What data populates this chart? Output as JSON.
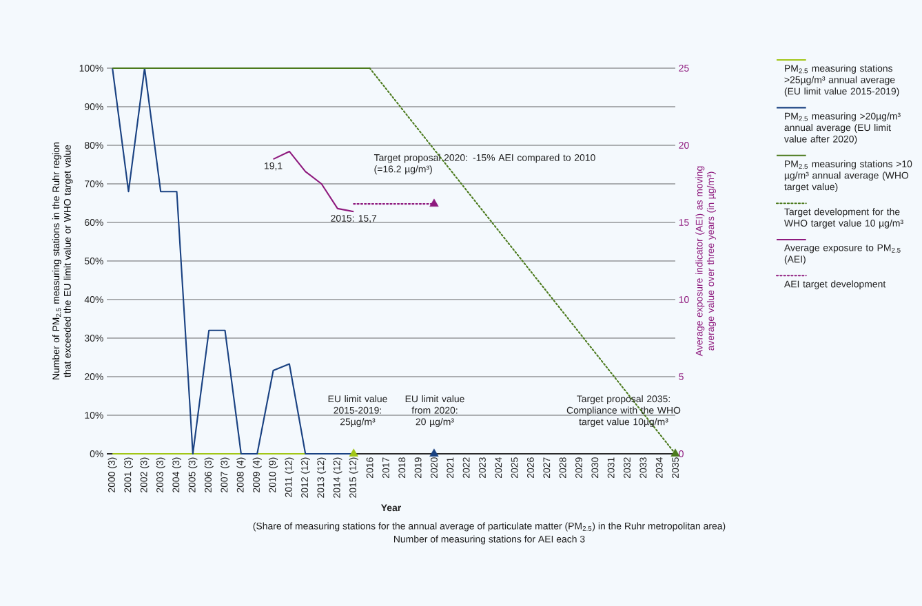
{
  "chart_data": {
    "type": "line",
    "categories": [
      "2000 (3)",
      "2001 (3)",
      "2002 (3)",
      "2003 (3)",
      "2004 (3)",
      "2005 (3)",
      "2006 (3)",
      "2007 (3)",
      "2008 (4)",
      "2009 (4)",
      "2010 (9)",
      "2011 (12)",
      "2012 (12)",
      "2013 (12)",
      "2014 (12)",
      "2015 (12)",
      "2016",
      "2017",
      "2018",
      "2019",
      "2020",
      "2021",
      "2022",
      "2023",
      "2024",
      "2025",
      "2026",
      "2027",
      "2028",
      "2029",
      "2030",
      "2031",
      "2032",
      "2033",
      "2034",
      "2035"
    ],
    "xlabel": "Year",
    "ylabel": "Number of PM$_{2.5}$ measuring stations in the Ruhr region that exceeded the EU limit value or WHO target value",
    "y2label": "Average exposure indicator (AEI) as moving average value over three years (in µg/m³)",
    "ylim": [
      0,
      100
    ],
    "yticks": [
      {
        "value": 0,
        "label": "0%"
      },
      {
        "value": 10,
        "label": "10%"
      },
      {
        "value": 20,
        "label": "20%"
      },
      {
        "value": 30,
        "label": "30%"
      },
      {
        "value": 40,
        "label": "40%"
      },
      {
        "value": 50,
        "label": "50%"
      },
      {
        "value": 60,
        "label": "60%"
      },
      {
        "value": 70,
        "label": "70%"
      },
      {
        "value": 80,
        "label": "80%"
      },
      {
        "value": 90,
        "label": "90%"
      },
      {
        "value": 100,
        "label": "100%"
      }
    ],
    "y2lim": [
      0,
      25
    ],
    "y2ticks": [
      0,
      5,
      10,
      15,
      20,
      25
    ],
    "grid": "y",
    "legend": "right",
    "series": [
      {
        "name": "PM$_{2.5}$ measuring stations >25µg/m³ annual average (EU limit value 2015-2019)",
        "color": "#a2c617",
        "values": [
          0,
          0,
          0,
          0,
          0,
          0,
          0,
          0,
          0,
          0,
          0,
          0,
          0,
          0,
          0,
          0,
          null,
          null,
          null,
          null,
          null,
          null,
          null,
          null,
          null,
          null,
          null,
          null,
          null,
          null,
          null,
          null,
          null,
          null,
          null,
          null
        ]
      },
      {
        "name": "PM$_{2.5}$ measuring >20µg/m³ annual average (EU limit value after 2020)",
        "color": "#1a4282",
        "values": [
          100,
          68,
          100,
          68,
          68,
          0,
          32,
          32,
          0,
          0,
          21.6,
          23.3,
          0,
          0,
          0,
          0,
          null,
          null,
          null,
          null,
          null,
          null,
          null,
          null,
          null,
          null,
          null,
          null,
          null,
          null,
          null,
          null,
          null,
          null,
          null,
          null
        ]
      },
      {
        "name": "PM$_{2.5}$ measuring stations >10 µg/m³ annual average (WHO target value)",
        "color": "#4b7a1c",
        "values": [
          100,
          100,
          100,
          100,
          100,
          100,
          100,
          100,
          100,
          100,
          100,
          100,
          100,
          100,
          100,
          100,
          100,
          null,
          null,
          null,
          null,
          null,
          null,
          null,
          null,
          null,
          null,
          null,
          null,
          null,
          null,
          null,
          null,
          null,
          null,
          null
        ]
      },
      {
        "name": "Target development for the WHO target value 10 µg/m³",
        "color": "#4b7a1c",
        "line_style": "dotted",
        "values": [
          null,
          null,
          null,
          null,
          null,
          null,
          null,
          null,
          null,
          null,
          null,
          null,
          null,
          null,
          null,
          null,
          100,
          null,
          null,
          null,
          null,
          null,
          null,
          null,
          null,
          null,
          null,
          null,
          null,
          null,
          null,
          null,
          null,
          null,
          null,
          0
        ]
      },
      {
        "name": "Average exposure to PM$_{2.5}$ (AEI)",
        "color": "#8e1a7e",
        "axis": "y2",
        "values": [
          null,
          null,
          null,
          null,
          null,
          null,
          null,
          null,
          null,
          null,
          19.1,
          19.6,
          18.3,
          17.5,
          15.9,
          15.7,
          null,
          null,
          null,
          null,
          null,
          null,
          null,
          null,
          null,
          null,
          null,
          null,
          null,
          null,
          null,
          null,
          null,
          null,
          null,
          null
        ],
        "value_labels": [
          null,
          null,
          null,
          null,
          null,
          null,
          null,
          null,
          null,
          null,
          "19,1",
          null,
          null,
          null,
          null,
          "2015: 15,7",
          null,
          null,
          null,
          null,
          null,
          null,
          null,
          null,
          null,
          null,
          null,
          null,
          null,
          null,
          null,
          null,
          null,
          null,
          null,
          null
        ]
      },
      {
        "name": "AEI target development",
        "color": "#8e1a7e",
        "axis": "y2",
        "line_style": "dotted",
        "values": [
          null,
          null,
          null,
          null,
          null,
          null,
          null,
          null,
          null,
          null,
          null,
          null,
          null,
          null,
          null,
          16.2,
          null,
          null,
          null,
          null,
          16.2,
          null,
          null,
          null,
          null,
          null,
          null,
          null,
          null,
          null,
          null,
          null,
          null,
          null,
          null,
          null
        ]
      },
      {
        "type": "scatter",
        "marker": "triangle",
        "color": "#a2c617",
        "values": [
          null,
          null,
          null,
          null,
          null,
          null,
          null,
          null,
          null,
          null,
          null,
          null,
          null,
          null,
          null,
          0,
          null,
          null,
          null,
          null,
          null,
          null,
          null,
          null,
          null,
          null,
          null,
          null,
          null,
          null,
          null,
          null,
          null,
          null,
          null,
          null
        ]
      },
      {
        "type": "scatter",
        "marker": "triangle",
        "color": "#1a4282",
        "values": [
          null,
          null,
          null,
          null,
          null,
          null,
          null,
          null,
          null,
          null,
          null,
          null,
          null,
          null,
          null,
          null,
          null,
          null,
          null,
          null,
          0,
          null,
          null,
          null,
          null,
          null,
          null,
          null,
          null,
          null,
          null,
          null,
          null,
          null,
          null,
          null
        ]
      },
      {
        "type": "scatter",
        "marker": "triangle",
        "color": "#4b7a1c",
        "values": [
          null,
          null,
          null,
          null,
          null,
          null,
          null,
          null,
          null,
          null,
          null,
          null,
          null,
          null,
          null,
          null,
          null,
          null,
          null,
          null,
          null,
          null,
          null,
          null,
          null,
          null,
          null,
          null,
          null,
          null,
          null,
          null,
          null,
          null,
          null,
          0
        ]
      },
      {
        "type": "scatter",
        "marker": "triangle",
        "color": "#8e1a7e",
        "axis": "y2",
        "values": [
          null,
          null,
          null,
          null,
          null,
          null,
          null,
          null,
          null,
          null,
          null,
          null,
          null,
          null,
          null,
          null,
          null,
          null,
          null,
          null,
          16.2,
          null,
          null,
          null,
          null,
          null,
          null,
          null,
          null,
          null,
          null,
          null,
          null,
          null,
          null,
          null
        ]
      }
    ],
    "annotations": [
      "(Share of measuring stations for the annual average of particulate matter (PM$_{2.5}$) in the Ruhr metropolitan area)",
      "Number of measuring stations for AEI each 3",
      "Target proposal 2020: -15% AEI compared to 2010 (=16.2 µg/m³)",
      "EU limit value 2015-2019: 25µg/m³",
      "EU limit value from 2020: 20 µg/m³",
      "Target proposal 2035: Compliance with the WHO target value 10µg/m³"
    ]
  }
}
